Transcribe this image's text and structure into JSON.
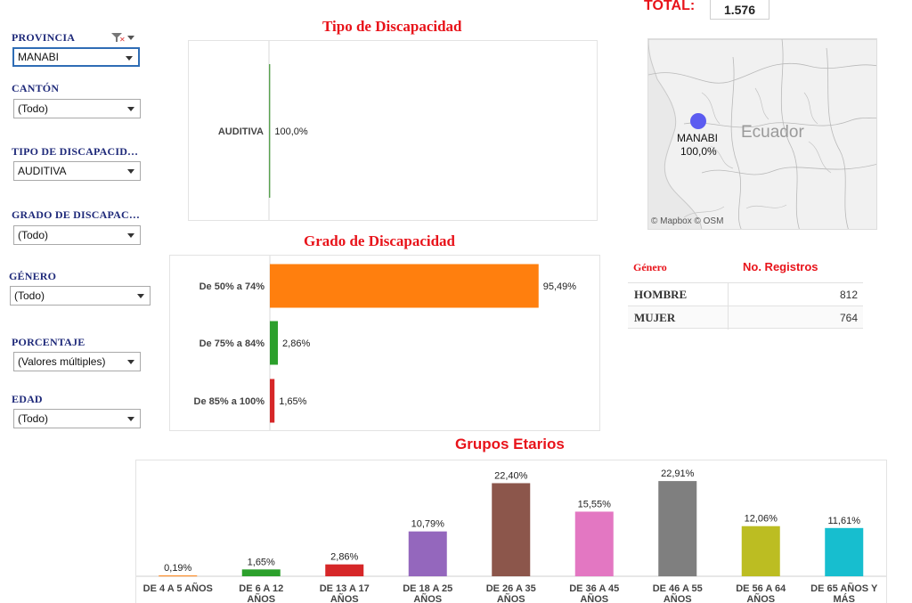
{
  "filters": [
    {
      "key": "provincia",
      "label": "PROVINCIA",
      "value": "MANABI"
    },
    {
      "key": "canton",
      "label": "CANTÓN",
      "value": "(Todo)"
    },
    {
      "key": "tipo",
      "label": "TIPO DE DISCAPACID…",
      "value": "AUDITIVA"
    },
    {
      "key": "grado",
      "label": "GRADO DE DISCAPAC…",
      "value": "(Todo)"
    },
    {
      "key": "genero",
      "label": "GÉNERO",
      "value": "(Todo)"
    },
    {
      "key": "porcentaje",
      "label": "PORCENTAJE",
      "value": "(Valores múltiples)"
    },
    {
      "key": "edad",
      "label": "EDAD",
      "value": "(Todo)"
    }
  ],
  "total": {
    "label": "TOTAL:",
    "value": "1.576"
  },
  "map": {
    "place_label": "MANABI",
    "place_value": "100,0%",
    "country_label": "Ecuador",
    "attribution": "© Mapbox  © OSM",
    "point_color": "#5b5bf0"
  },
  "table": {
    "header_genero": "Género",
    "header_registros": "No. Registros",
    "rows": [
      {
        "genero": "HOMBRE",
        "registros": "812"
      },
      {
        "genero": "MUJER",
        "registros": "764"
      }
    ]
  },
  "chart_data": [
    {
      "type": "bar",
      "orientation": "horizontal",
      "title": "Tipo de Discapacidad",
      "categories": [
        "AUDITIVA"
      ],
      "values": [
        100.0
      ],
      "labels": [
        "100,0%"
      ],
      "colors": [
        "#59a14f"
      ],
      "xlim": [
        0,
        100
      ]
    },
    {
      "type": "bar",
      "orientation": "horizontal",
      "title": "Grado de Discapacidad",
      "categories": [
        "De 50% a 74%",
        "De 75% a 84%",
        "De 85% a 100%"
      ],
      "values": [
        95.49,
        2.86,
        1.65
      ],
      "labels": [
        "95,49%",
        "2,86%",
        "1,65%"
      ],
      "colors": [
        "#ff7f0e",
        "#2ca02c",
        "#d62728"
      ],
      "xlim": [
        0,
        100
      ]
    },
    {
      "type": "bar",
      "title": "Grupos Etarios",
      "categories": [
        [
          "DE 4 A 5 AÑOS"
        ],
        [
          "DE 6 A 12",
          "AÑOS"
        ],
        [
          "DE 13 A 17",
          "AÑOS"
        ],
        [
          "DE 18 A 25",
          "AÑOS"
        ],
        [
          "DE 26 A 35",
          "AÑOS"
        ],
        [
          "DE 36 A 45",
          "AÑOS"
        ],
        [
          "DE 46 A 55",
          "AÑOS"
        ],
        [
          "DE 56 A 64",
          "AÑOS"
        ],
        [
          "DE 65 AÑOS Y",
          "MÁS"
        ]
      ],
      "values": [
        0.19,
        1.65,
        2.86,
        10.79,
        22.4,
        15.55,
        22.91,
        12.06,
        11.61
      ],
      "labels": [
        "0,19%",
        "1,65%",
        "2,86%",
        "10,79%",
        "22,40%",
        "15,55%",
        "22,91%",
        "12,06%",
        "11,61%"
      ],
      "colors": [
        "#ff7f0e",
        "#2ca02c",
        "#d62728",
        "#9467bd",
        "#8c564b",
        "#e377c2",
        "#7f7f7f",
        "#bcbd22",
        "#17becf"
      ],
      "ylim": [
        0,
        24
      ]
    }
  ]
}
